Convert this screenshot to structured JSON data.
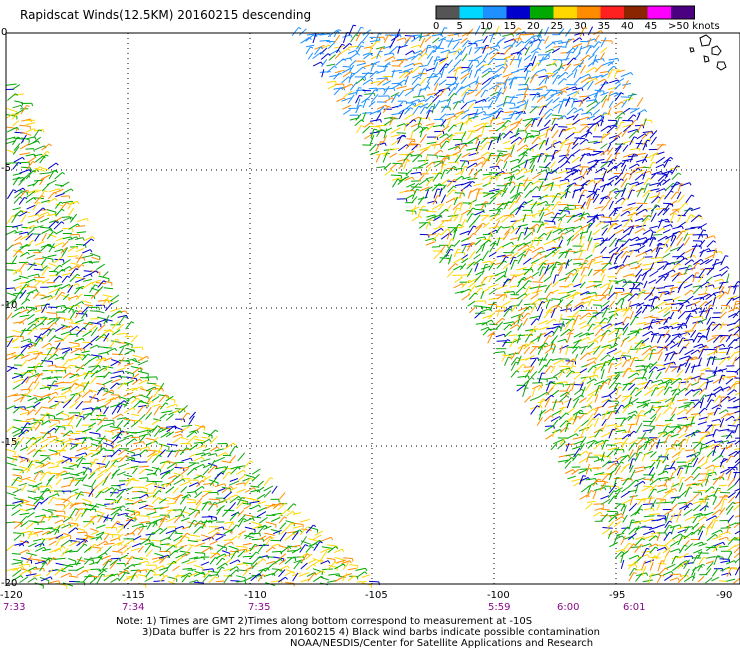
{
  "title": "Rapidscat Winds(12.5KM) 20160215 descending",
  "legend": {
    "labels": [
      "0",
      "5",
      "10",
      "15",
      "20",
      "25",
      "30",
      "35",
      "40",
      "45",
      ">50 knots"
    ],
    "colors": [
      "#555555",
      "#00d8ff",
      "#1e90ff",
      "#0000cc",
      "#00aa00",
      "#ffd700",
      "#ff8c00",
      "#ff2020",
      "#8b2500",
      "#ff00ff",
      "#4b0082"
    ]
  },
  "axes": {
    "y_ticks": [
      "0",
      "-5",
      "-10",
      "-15",
      "-20"
    ],
    "x_ticks": [
      "-120",
      "-115",
      "-110",
      "-105",
      "-100",
      "-95",
      "-90"
    ],
    "times": [
      "7:33",
      "7:34",
      "7:35",
      "5:59",
      "6:00",
      "6:01"
    ]
  },
  "notes": [
    "Note: 1) Times are GMT 2)Times along bottom correspond to measurement at -10S",
    "3)Data buffer is 22 hrs from 20160215 4) Black wind barbs indicate possible contamination",
    "NOAA/NESDIS/Center for Satellite Applications and Research"
  ],
  "swaths": [
    {
      "name": "west-swath",
      "colors_dominant": [
        "#00aa00",
        "#ffd700",
        "#ff8c00",
        "#0000cc"
      ]
    },
    {
      "name": "east-swath",
      "colors_dominant": [
        "#0000cc",
        "#00aa00",
        "#ffd700",
        "#ff8c00",
        "#1e90ff"
      ]
    }
  ]
}
